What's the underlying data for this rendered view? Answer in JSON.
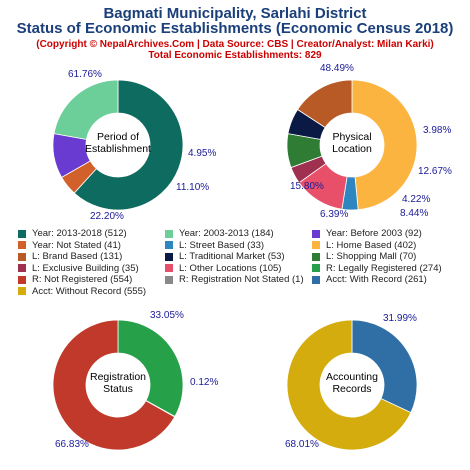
{
  "header": {
    "title_line1": "Bagmati Municipality, Sarlahi District",
    "title_line2": "Status of Economic Establishments (Economic Census 2018)",
    "copyright": "(Copyright © NepalArchives.Com | Data Source: CBS | Creator/Analyst: Milan Karki)",
    "total": "Total Economic Establishments: 829"
  },
  "chart_data": [
    {
      "type": "pie",
      "center_label": [
        "Period of",
        "Establishment"
      ],
      "slices": [
        {
          "label": "Year: 2013-2018",
          "value": 512,
          "pct": "61.76%",
          "color": "#0d6b5f"
        },
        {
          "label": "Year: Not Stated",
          "value": 41,
          "pct": "4.95%",
          "color": "#d2602a"
        },
        {
          "label": "Year: Before 2003",
          "value": 92,
          "pct": "11.10%",
          "color": "#6a3bd1"
        },
        {
          "label": "Year: 2003-2013",
          "value": 184,
          "pct": "22.20%",
          "color": "#6ccf99"
        }
      ]
    },
    {
      "type": "pie",
      "center_label": [
        "Physical",
        "Location"
      ],
      "slices": [
        {
          "label": "L: Home Based",
          "value": 402,
          "pct": "48.49%",
          "color": "#fbb440"
        },
        {
          "label": "L: Street Based",
          "value": 33,
          "pct": "3.98%",
          "color": "#2e86c1"
        },
        {
          "label": "L: Other Locations",
          "value": 105,
          "pct": "12.67%",
          "color": "#e8506a"
        },
        {
          "label": "L: Exclusive Building",
          "value": 35,
          "pct": "4.22%",
          "color": "#a03050"
        },
        {
          "label": "L: Shopping Mall",
          "value": 70,
          "pct": "8.44%",
          "color": "#2f7d34"
        },
        {
          "label": "L: Traditional Market",
          "value": 53,
          "pct": "6.39%",
          "color": "#0b1a44"
        },
        {
          "label": "L: Brand Based",
          "value": 131,
          "pct": "15.80%",
          "color": "#b85a25"
        }
      ]
    },
    {
      "type": "pie",
      "center_label": [
        "Registration",
        "Status"
      ],
      "slices": [
        {
          "label": "R: Legally Registered",
          "value": 274,
          "pct": "33.05%",
          "color": "#27a04a"
        },
        {
          "label": "R: Registration Not Stated",
          "value": 1,
          "pct": "0.12%",
          "color": "#888888"
        },
        {
          "label": "R: Not Registered",
          "value": 554,
          "pct": "66.83%",
          "color": "#c0392b"
        }
      ]
    },
    {
      "type": "pie",
      "center_label": [
        "Accounting",
        "Records"
      ],
      "slices": [
        {
          "label": "Acct: With Record",
          "value": 261,
          "pct": "31.99%",
          "color": "#2f6fa5"
        },
        {
          "label": "Acct: Without Record",
          "value": 555,
          "pct": "68.01%",
          "color": "#d4ac0d"
        }
      ]
    }
  ],
  "legend": [
    {
      "text": "Year: 2013-2018 (512)",
      "color": "#0d6b5f"
    },
    {
      "text": "Year: 2003-2013 (184)",
      "color": "#6ccf99"
    },
    {
      "text": "Year: Before 2003 (92)",
      "color": "#6a3bd1"
    },
    {
      "text": "Year: Not Stated (41)",
      "color": "#d2602a"
    },
    {
      "text": "L: Street Based (33)",
      "color": "#2e86c1"
    },
    {
      "text": "L: Home Based (402)",
      "color": "#fbb440"
    },
    {
      "text": "L: Brand Based (131)",
      "color": "#b85a25"
    },
    {
      "text": "L: Traditional Market (53)",
      "color": "#0b1a44"
    },
    {
      "text": "L: Shopping Mall (70)",
      "color": "#2f7d34"
    },
    {
      "text": "L: Exclusive Building (35)",
      "color": "#a03050"
    },
    {
      "text": "L: Other Locations (105)",
      "color": "#e8506a"
    },
    {
      "text": "R: Legally Registered (274)",
      "color": "#27a04a"
    },
    {
      "text": "R: Not Registered (554)",
      "color": "#c0392b"
    },
    {
      "text": "R: Registration Not Stated (1)",
      "color": "#888888"
    },
    {
      "text": "Acct: With Record (261)",
      "color": "#2f6fa5"
    },
    {
      "text": "Acct: Without Record (555)",
      "color": "#d4ac0d"
    }
  ]
}
